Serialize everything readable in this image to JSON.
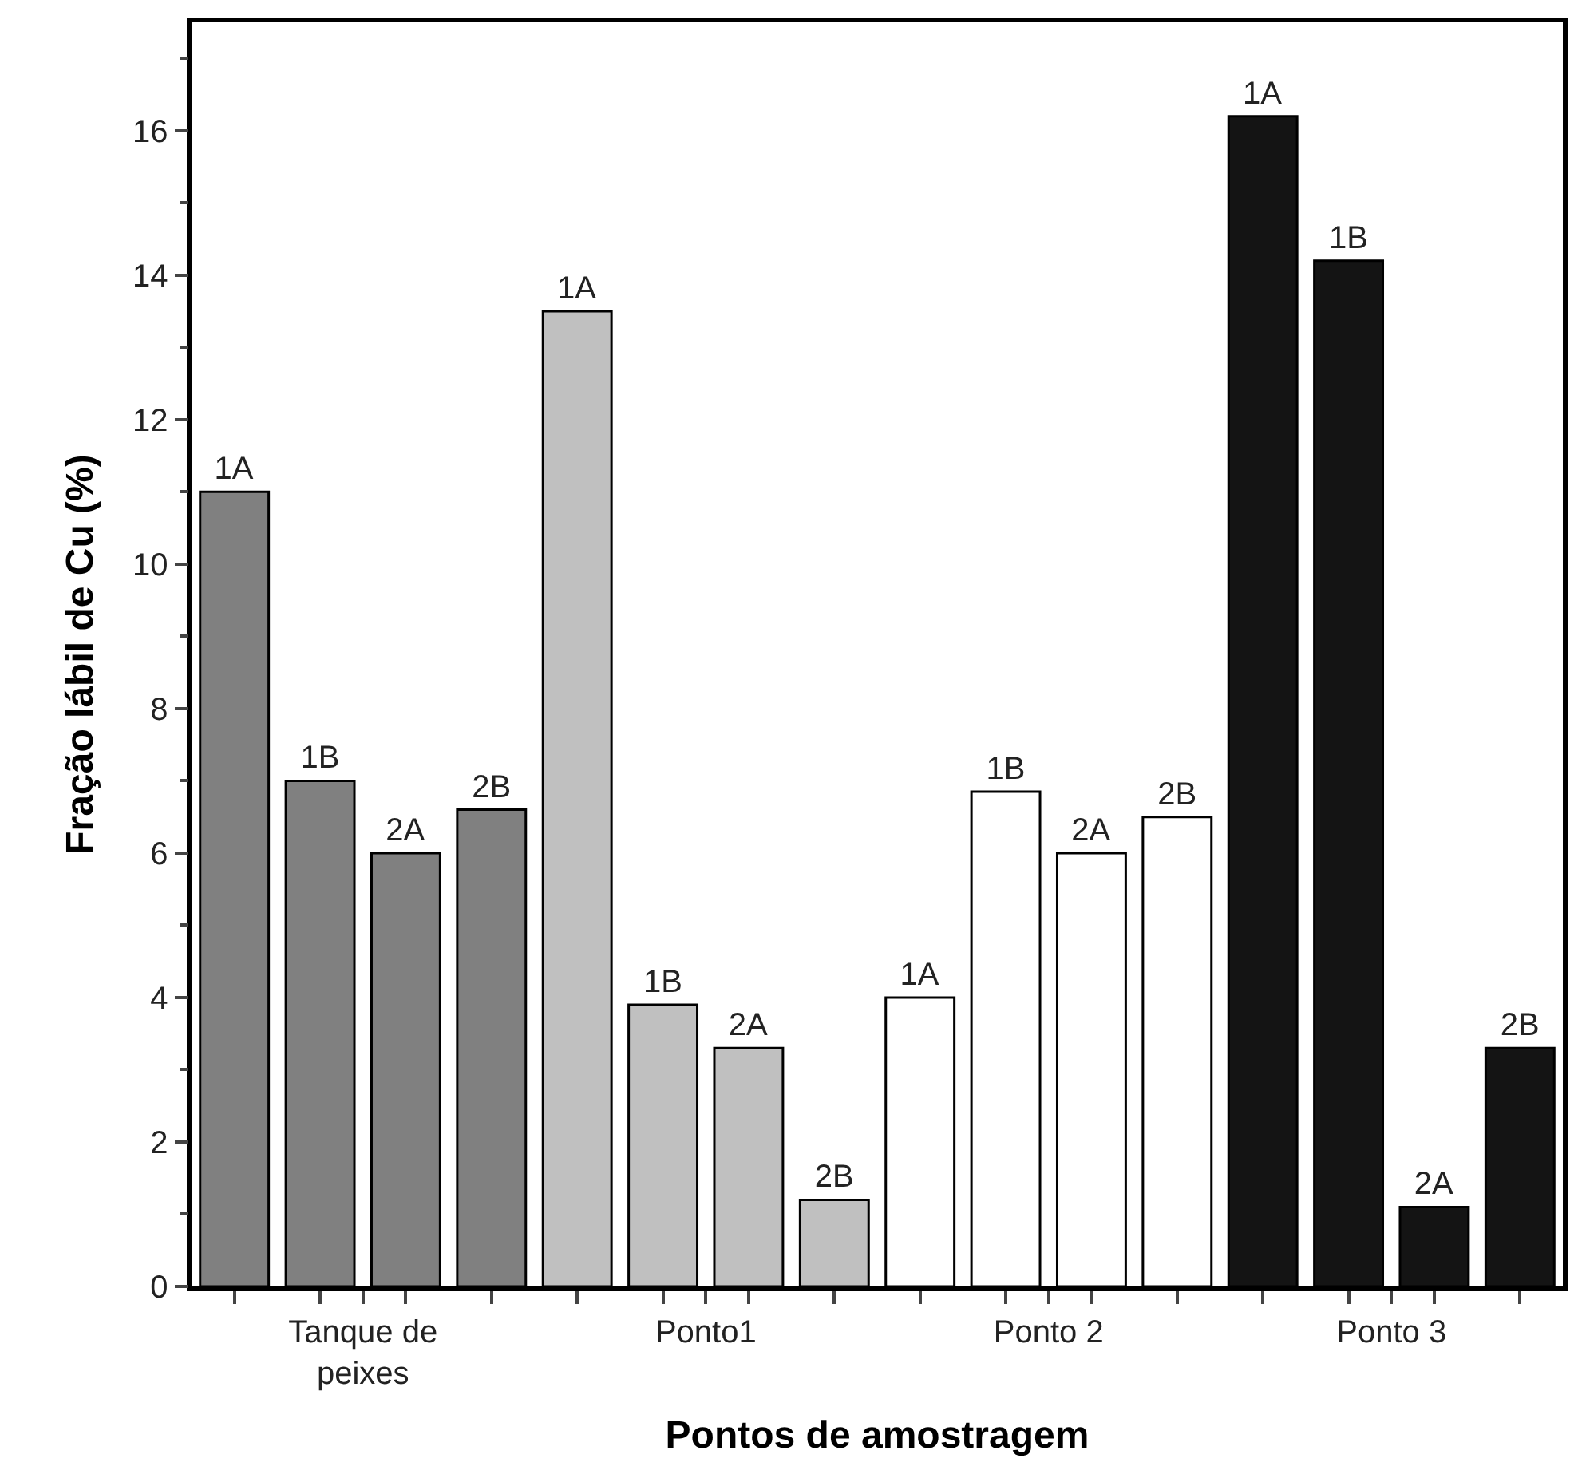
{
  "chart_data": {
    "type": "bar",
    "xlabel": "Pontos de amostragem",
    "ylabel": "Fração lábil de Cu (%)",
    "categories": [
      "Tanque de\npeixes",
      "Ponto1",
      "Ponto 2",
      "Ponto 3"
    ],
    "series": [
      {
        "name": "1A",
        "colors": [
          "#808080",
          "#c0c0c0",
          "#ffffff",
          "#141414"
        ],
        "values": [
          11.0,
          13.5,
          4.0,
          16.2
        ]
      },
      {
        "name": "1B",
        "colors": [
          "#808080",
          "#c0c0c0",
          "#ffffff",
          "#141414"
        ],
        "values": [
          7.0,
          3.9,
          6.85,
          14.2
        ]
      },
      {
        "name": "2A",
        "colors": [
          "#808080",
          "#c0c0c0",
          "#ffffff",
          "#141414"
        ],
        "values": [
          6.0,
          3.3,
          6.0,
          1.1
        ]
      },
      {
        "name": "2B",
        "colors": [
          "#808080",
          "#c0c0c0",
          "#ffffff",
          "#141414"
        ],
        "values": [
          6.6,
          1.2,
          6.5,
          3.3
        ]
      }
    ],
    "ylim": [
      0,
      17.5
    ],
    "yticks": [
      0,
      2,
      4,
      6,
      8,
      10,
      12,
      14,
      16
    ]
  }
}
